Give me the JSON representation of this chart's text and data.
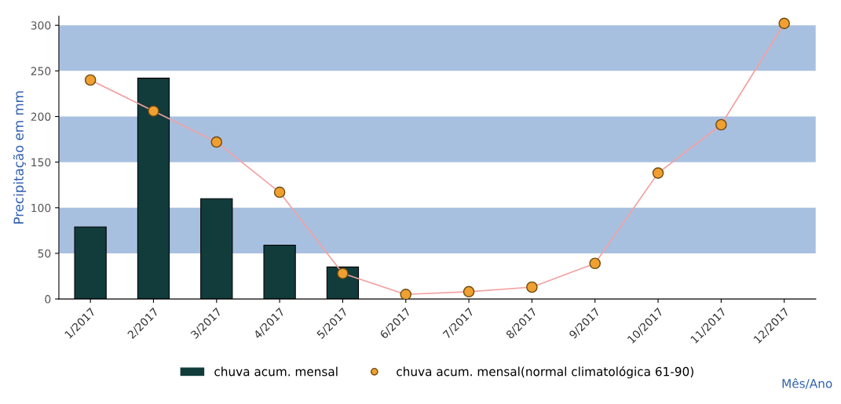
{
  "chart_data": {
    "type": "bar",
    "ylabel": "Precipitação em mm",
    "xlabel": "Mês/Ano",
    "categories": [
      "1/2017",
      "2/2017",
      "3/2017",
      "4/2017",
      "5/2017",
      "6/2017",
      "7/2017",
      "8/2017",
      "9/2017",
      "10/2017",
      "11/2017",
      "12/2017"
    ],
    "series": [
      {
        "name": "chuva acum. mensal",
        "color": "#123c3c",
        "values": [
          79,
          242,
          110,
          59,
          35,
          null,
          null,
          null,
          null,
          null,
          null,
          null
        ]
      },
      {
        "name": "chuva acum. mensal(normal climatológica 61-90)",
        "type": "line",
        "color": "#f4a0a0",
        "marker": "circle",
        "values": [
          240,
          206,
          172,
          117,
          28,
          5,
          8,
          13,
          39,
          138,
          191,
          302
        ]
      }
    ],
    "ylim": [
      0,
      310
    ],
    "yticks": [
      0,
      50,
      100,
      150,
      200,
      250,
      300
    ],
    "bands": [
      {
        "axis": "y",
        "from": 50,
        "to": 100,
        "color": "#a8c0e0"
      },
      {
        "axis": "y",
        "from": 150,
        "to": 200,
        "color": "#a8c0e0"
      },
      {
        "axis": "y",
        "from": 250,
        "to": 300,
        "color": "#a8c0e0"
      }
    ],
    "grid": false,
    "legend": "bottom"
  }
}
